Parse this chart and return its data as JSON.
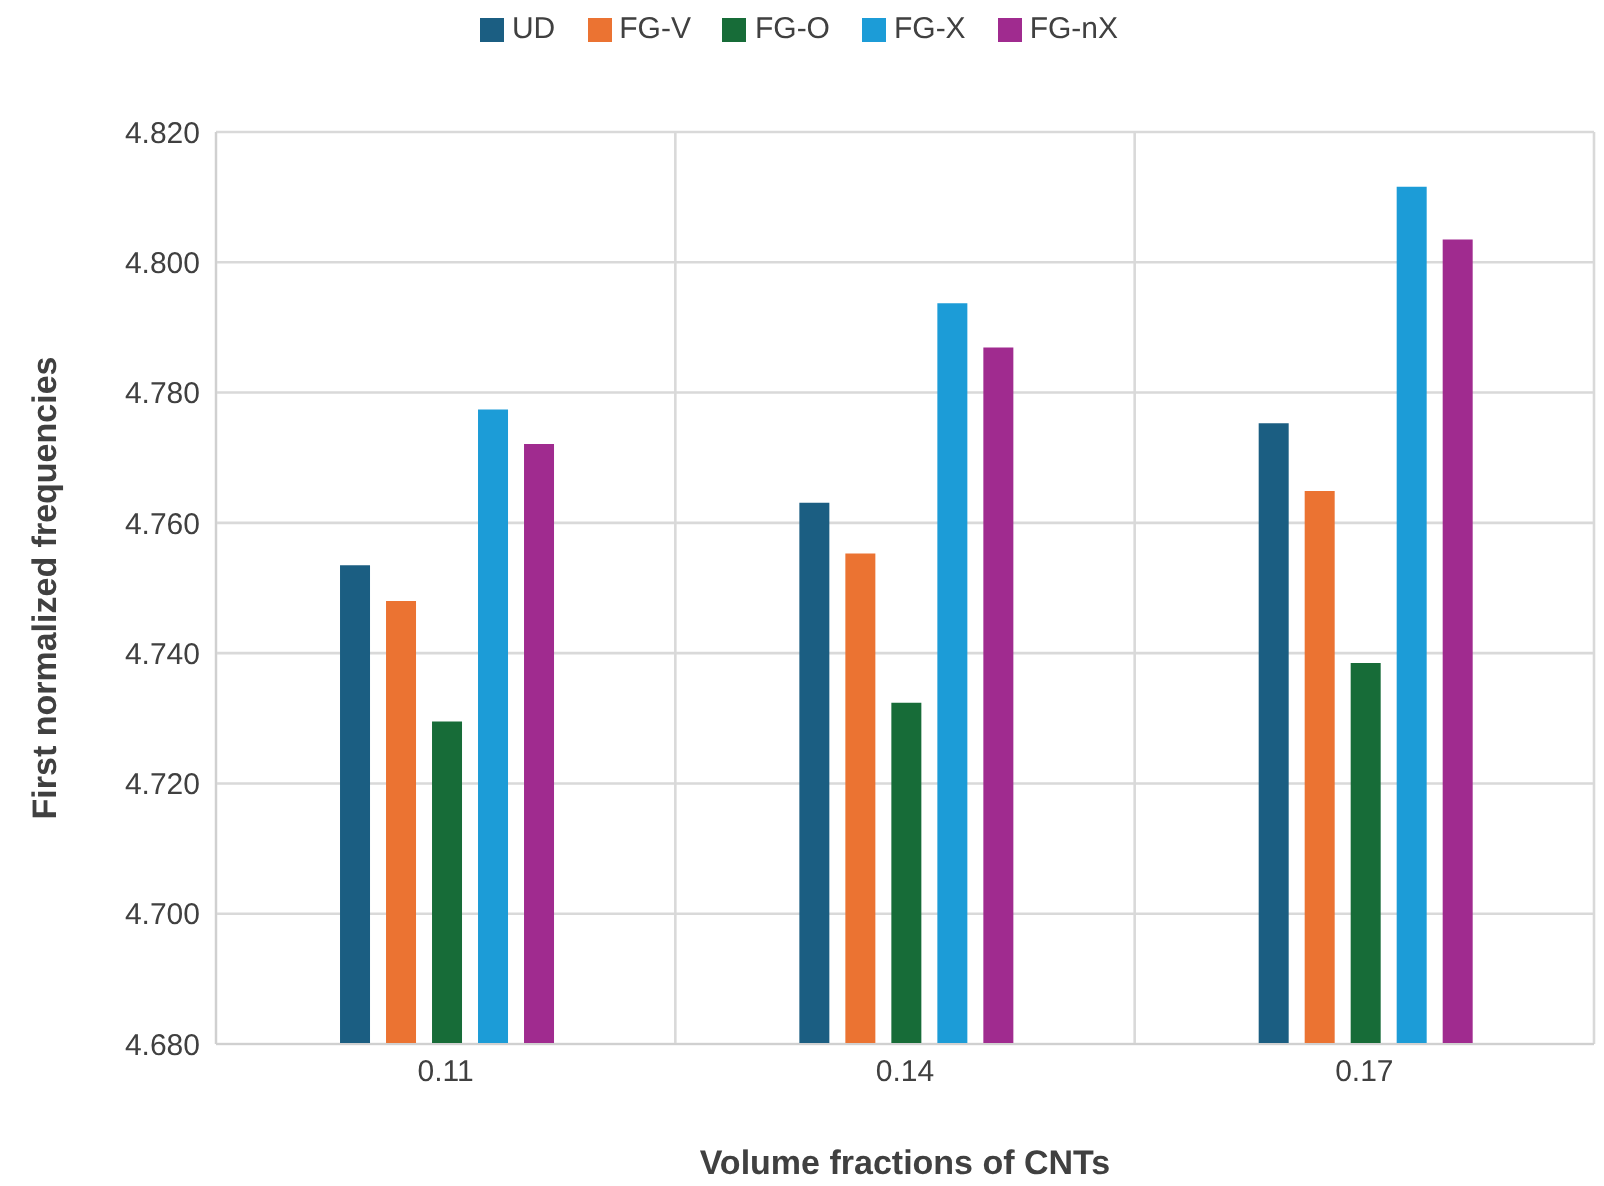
{
  "chart_data": {
    "type": "bar",
    "xlabel": "Volume fractions of CNTs",
    "ylabel": "First normalized frequencies",
    "categories": [
      "0.11",
      "0.14",
      "0.17"
    ],
    "series": [
      {
        "name": "UD",
        "color": "#1b5e82",
        "values": [
          4.7535,
          4.7631,
          4.7753
        ]
      },
      {
        "name": "FG-V",
        "color": "#eb7332",
        "values": [
          4.748,
          4.7553,
          4.7649
        ]
      },
      {
        "name": "FG-O",
        "color": "#176c38",
        "values": [
          4.7295,
          4.7324,
          4.7385
        ]
      },
      {
        "name": "FG-X",
        "color": "#1c9cd7",
        "values": [
          4.7774,
          4.7937,
          4.8116
        ]
      },
      {
        "name": "FG-nX",
        "color": "#a02b8f",
        "values": [
          4.7721,
          4.7869,
          4.8035
        ]
      }
    ],
    "ylim": [
      4.68,
      4.82
    ],
    "yticks": [
      {
        "value": 4.68,
        "label": "4.680"
      },
      {
        "value": 4.7,
        "label": "4.700"
      },
      {
        "value": 4.72,
        "label": "4.720"
      },
      {
        "value": 4.74,
        "label": "4.740"
      },
      {
        "value": 4.76,
        "label": "4.760"
      },
      {
        "value": 4.78,
        "label": "4.780"
      },
      {
        "value": 4.8,
        "label": "4.800"
      },
      {
        "value": 4.82,
        "label": "4.820"
      }
    ],
    "grid": true,
    "legend": "top"
  }
}
